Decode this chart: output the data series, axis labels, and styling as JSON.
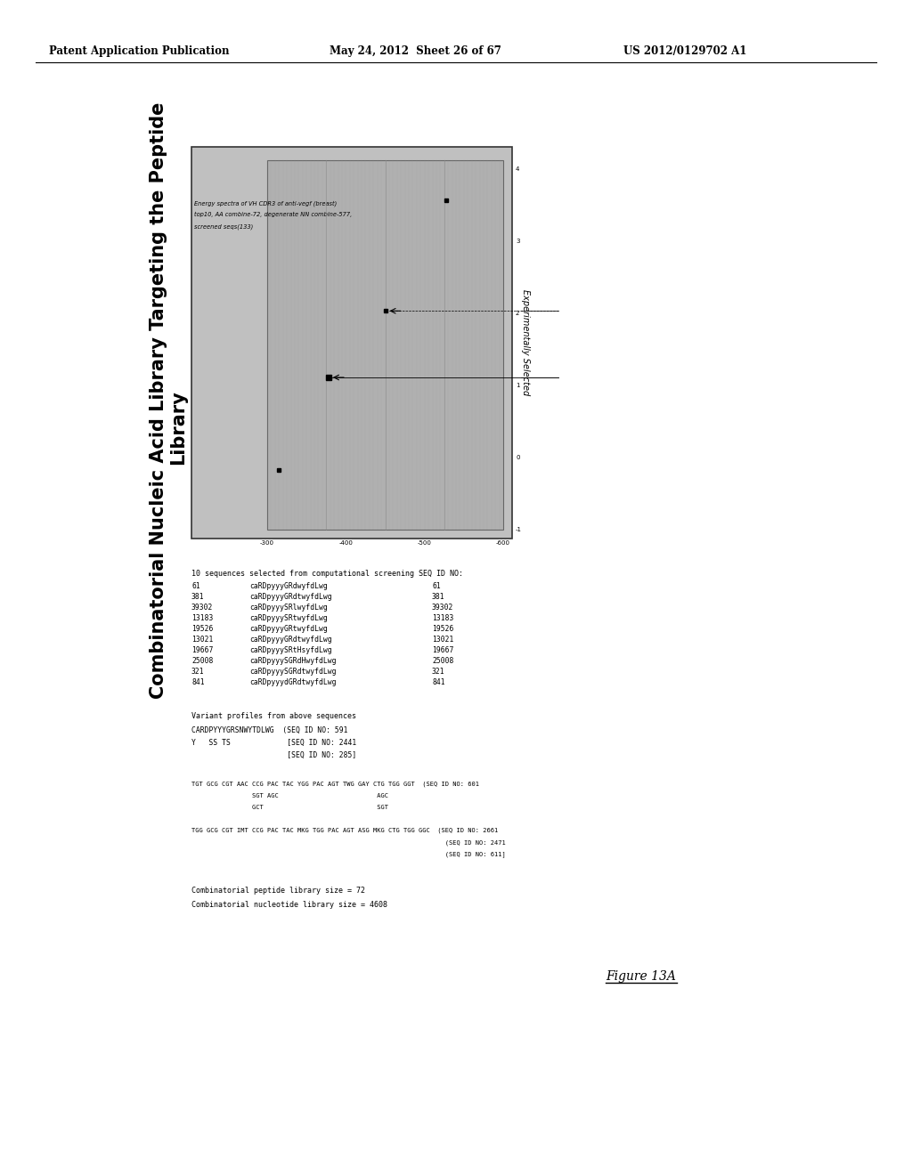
{
  "page_header_left": "Patent Application Publication",
  "page_header_mid": "May 24, 2012  Sheet 26 of 67",
  "page_header_right": "US 2012/0129702 A1",
  "main_title_line1": "Combinatorial Nucleic Acid Library Targeting the Peptide",
  "main_title_line2": "Library",
  "figure_label": "Figure 13A",
  "chart_title_line1": "Energy spectra of VH CDR3 of anti-vegf (breast)",
  "chart_title_line2": "top10, AA combine-72, degenerate NN combine-577,",
  "chart_title_line3": "screened seqs(133)",
  "x_ticks": [
    "-300",
    "-400",
    "-500",
    "-600"
  ],
  "y_ticks": [
    "-1",
    "0",
    "1",
    "2",
    "3",
    "4"
  ],
  "experimentally_selected_label": "Experimentally Selected",
  "seq_table_header": "10 sequences selected from computational screening",
  "seq_id_header": "SEQ ID NO:",
  "sequences": [
    {
      "id": "61",
      "name": "caRDpyyyGRdwyfdLwg"
    },
    {
      "id": "381",
      "name": "caRDpyyyGRdtwyfdLwg"
    },
    {
      "id": "39302",
      "name": "caRDpyyySRlwyfdLwg"
    },
    {
      "id": "13183",
      "name": "caRDpyyySRtwyfdLwg"
    },
    {
      "id": "19526",
      "name": "caRDpyyyGRtwyfdLwg"
    },
    {
      "id": "13021",
      "name": "caRDpyyyGRdtwyfdLwg"
    },
    {
      "id": "19667",
      "name": "caRDpyyySRtHsyfdLwg"
    },
    {
      "id": "25008",
      "name": "caRDpyyySGRdHwyfdLwg"
    },
    {
      "id": "321",
      "name": "caRDpyyySGRdtwyfdLwg"
    },
    {
      "id": "841",
      "name": "caRDpyyydGRdtwyfdLwg"
    }
  ],
  "variant_profile_header": "Variant profiles from above sequences",
  "variant_line1": "CARDPYYYGRSNWYTDLWG  (SEQ ID NO: 591",
  "variant_line2": "Y   SS TS             [SEQ ID NO: 2441",
  "variant_line3": "                      [SEQ ID NO: 285]",
  "dna_section1_line1": "TGT GCG CGT AAC CCG PAC TAC YGG PAC AGT TWG GAY CTG TGG GGT  (SEQ ID NO: 601",
  "dna_section1_line2": "                SGT AGC                          AGC",
  "dna_section1_line3": "                GCT                              SGT",
  "dna_section2_line1": "TGG GCG CGT IMT CCG PAC TAC MKG TGG PAC AGT ASG MKG CTG TGG GGC  (SEQ ID NO: 2661",
  "dna_section2_line2": "                                                                   (SEQ ID NO: 2471",
  "dna_section2_line3": "                                                                   (SEQ ID NO: 611]",
  "comb_peptide": "Combinatorial peptide library size = 72",
  "comb_nucleotide": "Combinatorial nucleotide library size = 4608",
  "background_color": "#ffffff",
  "text_color": "#000000"
}
